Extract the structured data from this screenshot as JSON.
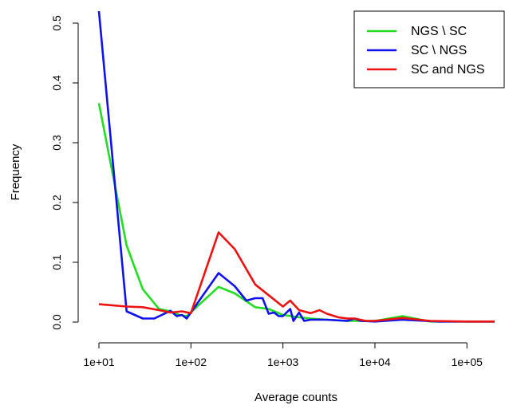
{
  "chart_data": {
    "type": "line",
    "title": "",
    "xlabel": "Average counts",
    "ylabel": "Frequency",
    "x_scale": "log",
    "xlim": [
      10,
      200000
    ],
    "ylim": [
      0,
      0.5
    ],
    "x_ticks": [
      10,
      100,
      1000,
      10000,
      100000
    ],
    "x_tick_labels": [
      "1e+01",
      "1e+02",
      "1e+03",
      "1e+04",
      "1e+05"
    ],
    "y_ticks": [
      0,
      0.1,
      0.2,
      0.3,
      0.4,
      0.5
    ],
    "y_tick_labels": [
      "0.0",
      "0.1",
      "0.2",
      "0.3",
      "0.4",
      "0.5"
    ],
    "grid": false,
    "legend_position": "top-right",
    "series": [
      {
        "name": "NGS \\ SC",
        "color": "#22dd22",
        "x": [
          10,
          20,
          30,
          45,
          60,
          75,
          90,
          200,
          300,
          500,
          700,
          1000,
          1500,
          2000,
          3000,
          5000,
          10000,
          20000,
          40000,
          100000,
          200000
        ],
        "y": [
          0.366,
          0.128,
          0.055,
          0.022,
          0.018,
          0.012,
          0.01,
          0.059,
          0.048,
          0.025,
          0.022,
          0.012,
          0.008,
          0.006,
          0.004,
          0.002,
          0.002,
          0.01,
          0.001,
          0.001,
          0.001
        ]
      },
      {
        "name": "SC \\ NGS",
        "color": "#1111ee",
        "x": [
          10,
          20,
          30,
          40,
          60,
          70,
          80,
          90,
          200,
          300,
          400,
          500,
          600,
          700,
          800,
          900,
          1000,
          1200,
          1300,
          1500,
          1700,
          2000,
          3000,
          5000,
          6000,
          7000,
          10000,
          20000,
          50000,
          100000,
          200000
        ],
        "y": [
          0.52,
          0.018,
          0.006,
          0.006,
          0.019,
          0.01,
          0.012,
          0.006,
          0.082,
          0.06,
          0.036,
          0.04,
          0.04,
          0.014,
          0.016,
          0.01,
          0.01,
          0.022,
          0.002,
          0.016,
          0.002,
          0.004,
          0.004,
          0.002,
          0.006,
          0.002,
          0.001,
          0.004,
          0.001,
          0.001,
          0.001
        ]
      },
      {
        "name": "SC and NGS",
        "color": "#ee1111",
        "x": [
          10,
          20,
          30,
          45,
          60,
          80,
          100,
          200,
          300,
          500,
          700,
          1000,
          1200,
          1500,
          2000,
          2500,
          3000,
          4000,
          5000,
          6000,
          8000,
          10000,
          20000,
          40000,
          100000,
          200000
        ],
        "y": [
          0.03,
          0.026,
          0.025,
          0.02,
          0.016,
          0.018,
          0.015,
          0.15,
          0.122,
          0.063,
          0.045,
          0.026,
          0.036,
          0.02,
          0.015,
          0.02,
          0.014,
          0.008,
          0.006,
          0.006,
          0.002,
          0.002,
          0.007,
          0.002,
          0.001,
          0.001
        ]
      }
    ]
  }
}
